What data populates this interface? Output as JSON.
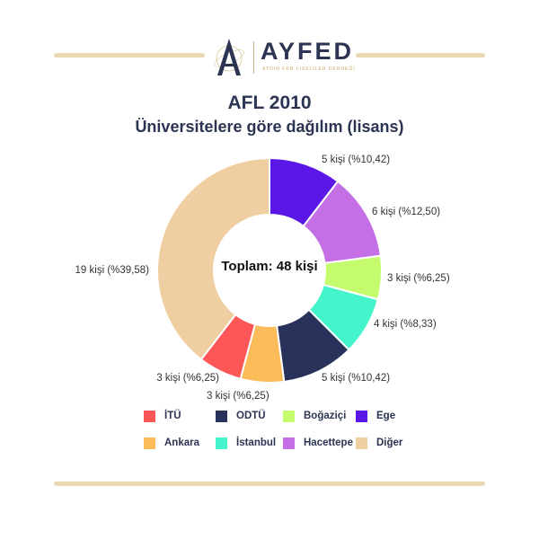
{
  "logo": {
    "text": "AYFED",
    "subtitle": "AYDIN FEN LİSELİLER DERNEĞİ"
  },
  "title": "AFL 2010",
  "subtitle": "Üniversitelere göre dağılım (lisans)",
  "center_label": "Toplam: 48 kişi",
  "colors": {
    "rule": "#ecd9b4",
    "text_dark": "#2b3452"
  },
  "chart_data": {
    "type": "pie",
    "subtype": "donut",
    "title": "AFL 2010",
    "subtitle": "Üniversitelere göre dağılım (lisans)",
    "total": 48,
    "slices": [
      {
        "name": "Ege",
        "value": 5,
        "label": "5 kişi (%10,42)",
        "color": "#5b17e6"
      },
      {
        "name": "Hacettepe",
        "value": 6,
        "label": "6 kişi (%12,50)",
        "color": "#c46fe6"
      },
      {
        "name": "Boğaziçi",
        "value": 3,
        "label": "3 kişi (%6,25)",
        "color": "#c4fc6e"
      },
      {
        "name": "İstanbul",
        "value": 4,
        "label": "4 kişi (%8,33)",
        "color": "#44f5cc"
      },
      {
        "name": "ODTÜ",
        "value": 5,
        "label": "5 kişi (%10,42)",
        "color": "#28325a"
      },
      {
        "name": "Ankara",
        "value": 3,
        "label": "3 kişi (%6,25)",
        "color": "#fdbc5a"
      },
      {
        "name": "İTÜ",
        "value": 3,
        "label": "3 kişi (%6,25)",
        "color": "#fd5656"
      },
      {
        "name": "Diğer",
        "value": 19,
        "label": "19 kişi (%39,58)",
        "color": "#efcfa1"
      }
    ],
    "legend": [
      {
        "name": "İTÜ",
        "color": "#fd5656"
      },
      {
        "name": "ODTÜ",
        "color": "#28325a"
      },
      {
        "name": "Boğaziçi",
        "color": "#c4fc6e"
      },
      {
        "name": "Ege",
        "color": "#5b17e6"
      },
      {
        "name": "Ankara",
        "color": "#fdbc5a"
      },
      {
        "name": "İstanbul",
        "color": "#44f5cc"
      },
      {
        "name": "Hacettepe",
        "color": "#c46fe6"
      },
      {
        "name": "Diğer",
        "color": "#efcfa1"
      }
    ],
    "legend_position": "bottom"
  }
}
